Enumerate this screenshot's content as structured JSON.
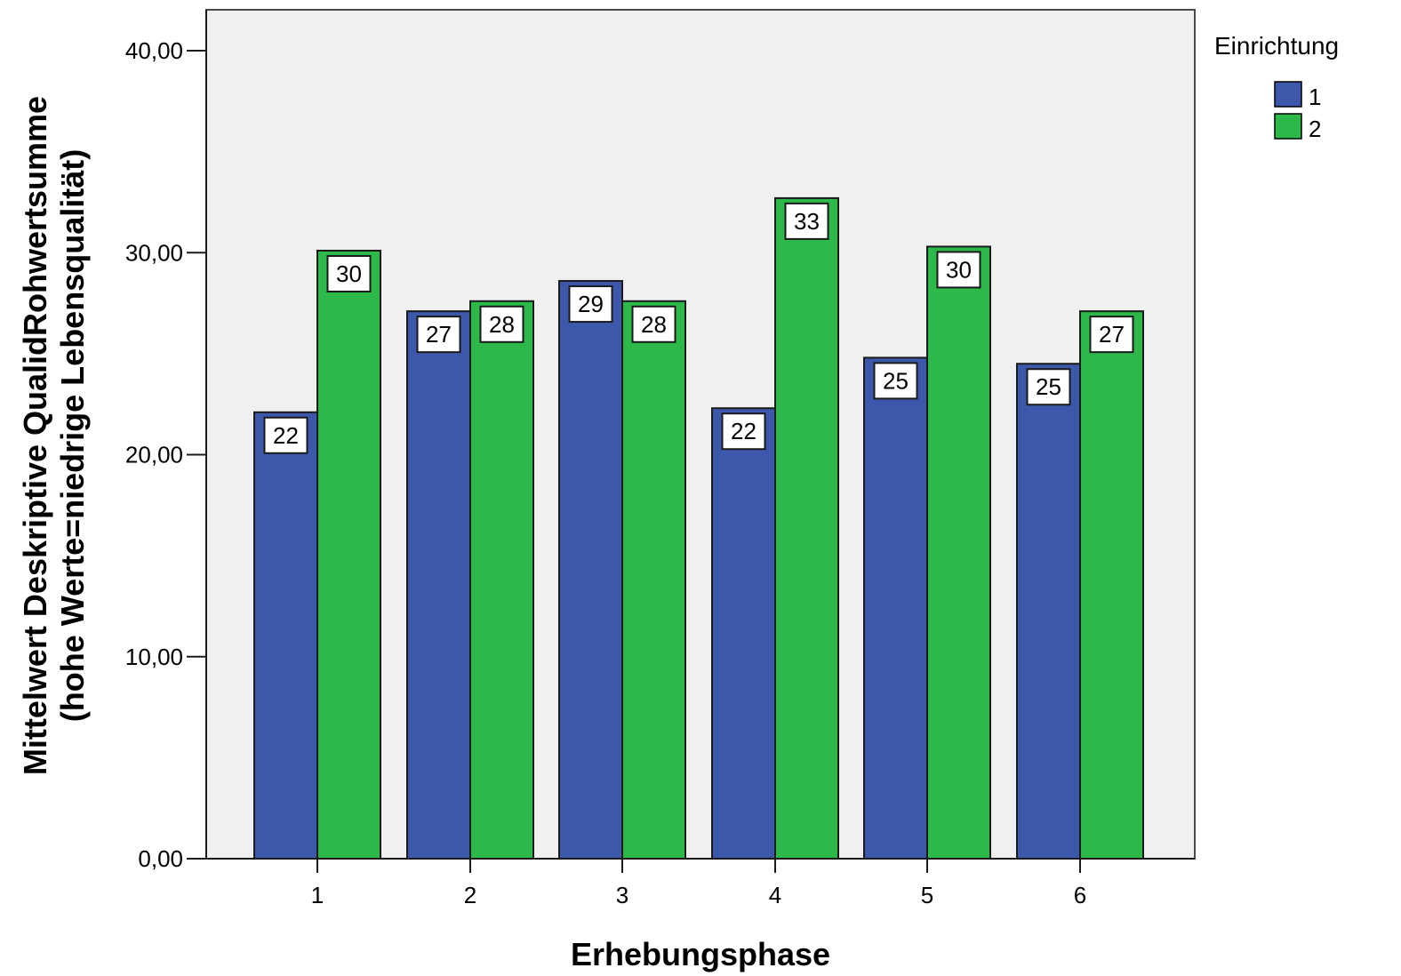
{
  "chart_data": {
    "type": "bar",
    "categories": [
      "1",
      "2",
      "3",
      "4",
      "5",
      "6"
    ],
    "series": [
      {
        "name": "1",
        "color": "#3d58ab",
        "values": [
          22.1,
          27.1,
          28.6,
          22.3,
          24.8,
          24.5
        ],
        "labels": [
          "22",
          "27",
          "29",
          "22",
          "25",
          "25"
        ]
      },
      {
        "name": "2",
        "color": "#2db84a",
        "values": [
          30.1,
          27.6,
          27.6,
          32.7,
          30.3,
          27.1
        ],
        "labels": [
          "30",
          "28",
          "28",
          "33",
          "30",
          "27"
        ]
      }
    ],
    "xlabel": "Erhebungsphase",
    "ylabel_lines": [
      "Mittelwert Deskriptive QualidRohwertsumme",
      "(hohe Werte=niedrige Lebensqualität)"
    ],
    "ylim": [
      0,
      42
    ],
    "yticks": [
      0,
      10,
      20,
      30,
      40
    ],
    "ytick_labels": [
      "0,00",
      "10,00",
      "20,00",
      "30,00",
      "40,00"
    ],
    "legend": {
      "title": "Einrichtung",
      "position": "top-right"
    },
    "plot_background": "#f0f0f0",
    "grid": false
  }
}
